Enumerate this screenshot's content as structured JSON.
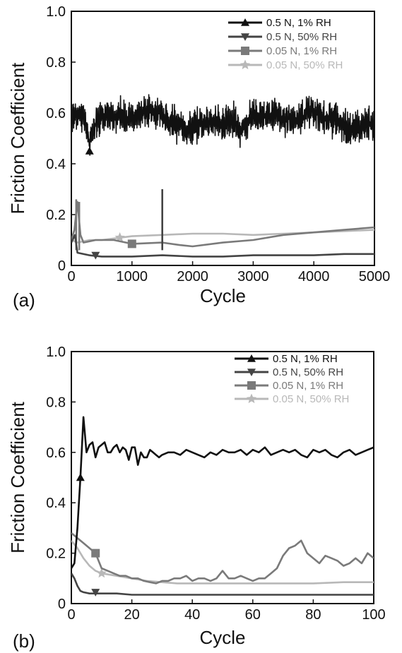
{
  "chart_data": [
    {
      "type": "line",
      "panel_label": "(a)",
      "xlabel": "Cycle",
      "ylabel": "Friction Coefficient",
      "xlim": [
        0,
        5000
      ],
      "ylim": [
        0,
        1.0
      ],
      "xticks": [
        "0",
        "1000",
        "2000",
        "3000",
        "4000",
        "5000"
      ],
      "yticks": [
        "0",
        "0.2",
        "0.4",
        "0.6",
        "0.8",
        "1.0"
      ],
      "legend_position": "top-right",
      "series": [
        {
          "name": "0.5 N, 1% RH",
          "color": "#111111",
          "marker": "triangle-up",
          "noisy": true,
          "x": [
            0,
            100,
            200,
            300,
            400,
            500,
            700,
            900,
            1100,
            1300,
            1450,
            1550,
            1700,
            1900,
            2100,
            2300,
            2500,
            2700,
            2800,
            2900,
            3100,
            3300,
            3500,
            3700,
            3900,
            4100,
            4300,
            4500,
            4700,
            4900,
            5000
          ],
          "y": [
            0.58,
            0.6,
            0.59,
            0.48,
            0.56,
            0.58,
            0.59,
            0.58,
            0.6,
            0.6,
            0.61,
            0.56,
            0.56,
            0.53,
            0.56,
            0.57,
            0.56,
            0.57,
            0.52,
            0.58,
            0.59,
            0.59,
            0.58,
            0.57,
            0.6,
            0.59,
            0.58,
            0.55,
            0.54,
            0.56,
            0.55
          ],
          "marker_points": [
            [
              300,
              0.45
            ]
          ]
        },
        {
          "name": "0.5 N, 50% RH",
          "color": "#444444",
          "marker": "triangle-down",
          "noisy": false,
          "x": [
            0,
            60,
            100,
            300,
            500,
            1000,
            1500,
            2000,
            2500,
            3000,
            3500,
            4000,
            4500,
            5000
          ],
          "y": [
            0.09,
            0.12,
            0.05,
            0.04,
            0.035,
            0.035,
            0.04,
            0.035,
            0.035,
            0.04,
            0.04,
            0.04,
            0.045,
            0.045
          ],
          "marker_points": [
            [
              400,
              0.04
            ]
          ],
          "spikes": [
            [
              1500,
              0.3
            ]
          ]
        },
        {
          "name": "0.05 N, 1% RH",
          "color": "#7a7a7a",
          "marker": "square",
          "noisy": false,
          "x": [
            0,
            50,
            100,
            150,
            200,
            400,
            700,
            1000,
            1500,
            1800,
            2000,
            2500,
            3000,
            3500,
            4000,
            4500,
            5000
          ],
          "y": [
            0.1,
            0.14,
            0.25,
            0.12,
            0.09,
            0.1,
            0.1,
            0.085,
            0.09,
            0.08,
            0.075,
            0.09,
            0.1,
            0.12,
            0.13,
            0.14,
            0.15
          ],
          "marker_points": [
            [
              1000,
              0.085
            ]
          ],
          "spikes": [
            [
              80,
              0.26
            ],
            [
              130,
              0.25
            ]
          ]
        },
        {
          "name": "0.05 N, 50% RH",
          "color": "#b8b8b8",
          "marker": "star",
          "noisy": false,
          "x": [
            0,
            100,
            300,
            500,
            1000,
            1500,
            2000,
            2500,
            3000,
            3500,
            4000,
            4500,
            5000
          ],
          "y": [
            0.1,
            0.09,
            0.1,
            0.1,
            0.115,
            0.12,
            0.125,
            0.125,
            0.12,
            0.125,
            0.13,
            0.135,
            0.14
          ],
          "marker_points": [
            [
              800,
              0.11
            ]
          ]
        }
      ]
    },
    {
      "type": "line",
      "panel_label": "(b)",
      "xlabel": "Cycle",
      "ylabel": "Friction Coefficient",
      "xlim": [
        0,
        100
      ],
      "ylim": [
        0,
        1.0
      ],
      "xticks": [
        "0",
        "20",
        "40",
        "60",
        "80",
        "100"
      ],
      "yticks": [
        "0",
        "0.2",
        "0.4",
        "0.6",
        "0.8",
        "1.0"
      ],
      "legend_position": "top-right",
      "series": [
        {
          "name": "0.5 N, 1% RH",
          "color": "#111111",
          "marker": "triangle-up",
          "x": [
            0,
            1,
            2,
            3,
            4,
            5,
            6,
            7,
            8,
            9,
            10,
            11,
            12,
            13,
            14,
            15,
            16,
            17,
            18,
            19,
            20,
            21,
            22,
            23,
            24,
            25,
            26,
            27,
            28,
            29,
            30,
            32,
            34,
            36,
            38,
            40,
            42,
            44,
            46,
            48,
            50,
            52,
            54,
            56,
            58,
            60,
            62,
            64,
            66,
            68,
            70,
            72,
            74,
            76,
            78,
            80,
            82,
            84,
            86,
            88,
            90,
            92,
            94,
            96,
            98,
            100
          ],
          "y": [
            0.14,
            0.16,
            0.3,
            0.5,
            0.74,
            0.6,
            0.63,
            0.64,
            0.58,
            0.62,
            0.63,
            0.64,
            0.6,
            0.6,
            0.62,
            0.63,
            0.6,
            0.62,
            0.61,
            0.57,
            0.62,
            0.62,
            0.55,
            0.6,
            0.58,
            0.58,
            0.61,
            0.6,
            0.59,
            0.58,
            0.59,
            0.6,
            0.6,
            0.59,
            0.61,
            0.6,
            0.59,
            0.58,
            0.6,
            0.59,
            0.61,
            0.6,
            0.6,
            0.61,
            0.59,
            0.61,
            0.6,
            0.62,
            0.59,
            0.6,
            0.61,
            0.6,
            0.61,
            0.59,
            0.58,
            0.61,
            0.6,
            0.61,
            0.59,
            0.58,
            0.6,
            0.61,
            0.59,
            0.6,
            0.61,
            0.62
          ],
          "marker_points": [
            [
              3,
              0.5
            ]
          ]
        },
        {
          "name": "0.5 N, 50% RH",
          "color": "#444444",
          "marker": "triangle-down",
          "x": [
            0,
            1,
            2,
            3,
            4,
            6,
            8,
            10,
            15,
            20,
            30,
            40,
            50,
            60,
            70,
            80,
            90,
            100
          ],
          "y": [
            0.12,
            0.1,
            0.07,
            0.05,
            0.045,
            0.04,
            0.04,
            0.04,
            0.04,
            0.035,
            0.035,
            0.035,
            0.035,
            0.035,
            0.035,
            0.035,
            0.035,
            0.035
          ],
          "marker_points": [
            [
              8,
              0.045
            ]
          ]
        },
        {
          "name": "0.05 N, 1% RH",
          "color": "#7a7a7a",
          "marker": "square",
          "x": [
            0,
            2,
            4,
            6,
            8,
            10,
            12,
            14,
            16,
            18,
            20,
            22,
            24,
            26,
            28,
            30,
            32,
            34,
            36,
            38,
            40,
            42,
            44,
            46,
            48,
            50,
            52,
            54,
            56,
            58,
            60,
            62,
            64,
            66,
            68,
            70,
            72,
            74,
            76,
            78,
            80,
            82,
            84,
            86,
            88,
            90,
            92,
            94,
            96,
            98,
            100
          ],
          "y": [
            0.28,
            0.26,
            0.24,
            0.22,
            0.2,
            0.14,
            0.13,
            0.12,
            0.11,
            0.11,
            0.1,
            0.1,
            0.09,
            0.085,
            0.08,
            0.09,
            0.09,
            0.1,
            0.1,
            0.11,
            0.09,
            0.1,
            0.1,
            0.09,
            0.1,
            0.13,
            0.1,
            0.1,
            0.11,
            0.1,
            0.09,
            0.1,
            0.1,
            0.12,
            0.14,
            0.19,
            0.22,
            0.23,
            0.25,
            0.2,
            0.18,
            0.16,
            0.19,
            0.18,
            0.17,
            0.15,
            0.16,
            0.18,
            0.16,
            0.2,
            0.18
          ],
          "marker_points": [
            [
              8,
              0.2
            ]
          ]
        },
        {
          "name": "0.05 N, 50% RH",
          "color": "#b8b8b8",
          "marker": "star",
          "x": [
            0,
            2,
            4,
            6,
            8,
            10,
            15,
            20,
            25,
            30,
            35,
            40,
            50,
            60,
            70,
            80,
            90,
            100
          ],
          "y": [
            0.25,
            0.22,
            0.18,
            0.15,
            0.13,
            0.12,
            0.11,
            0.1,
            0.09,
            0.085,
            0.08,
            0.08,
            0.08,
            0.08,
            0.08,
            0.08,
            0.085,
            0.085
          ],
          "marker_points": [
            [
              10,
              0.12
            ]
          ]
        }
      ]
    }
  ]
}
